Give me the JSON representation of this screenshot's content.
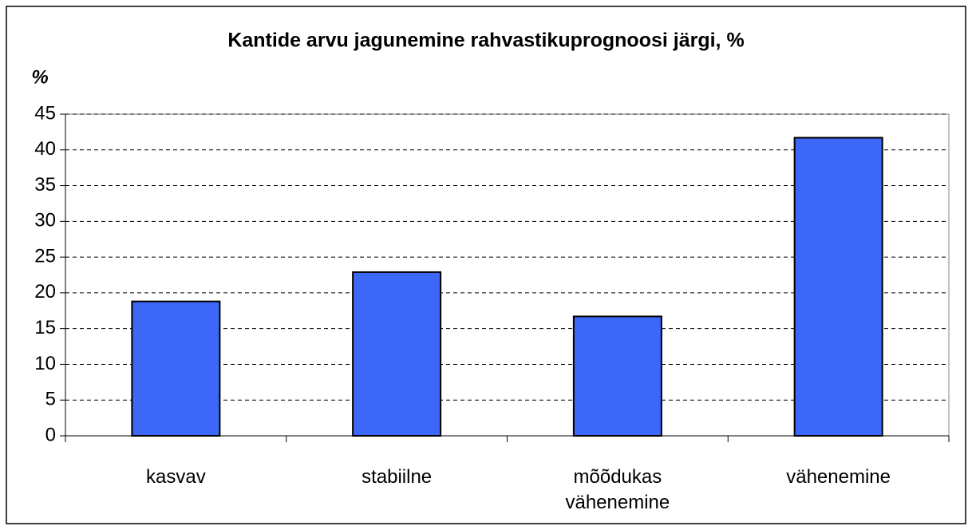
{
  "chart_data": {
    "type": "bar",
    "title": "Kantide arvu jagunemine rahvastikuprognoosi järgi, %",
    "y_axis_label": "%",
    "categories": [
      "kasvav",
      "stabiilne",
      "mõõdukas vähenemine",
      "vähenemine"
    ],
    "values": [
      18.8,
      22.9,
      16.7,
      41.7
    ],
    "color": "#3d67f7",
    "ylim": [
      0,
      45
    ],
    "yticks": [
      0,
      5,
      10,
      15,
      20,
      25,
      30,
      35,
      40,
      45
    ],
    "grid": true
  }
}
